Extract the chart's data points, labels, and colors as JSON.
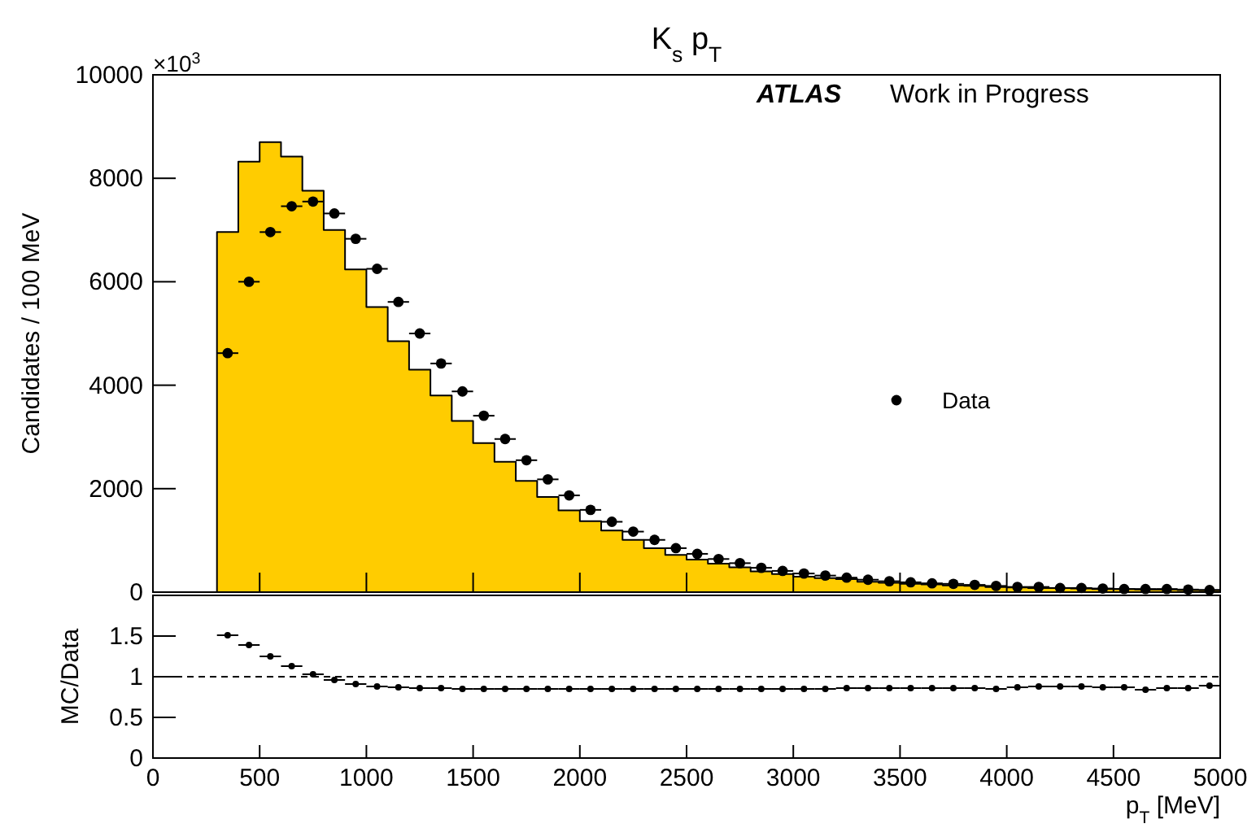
{
  "chart_data": [
    {
      "type": "histogram",
      "title": "K$_{s}$ p$_{T}$",
      "ylabel": "Candidates / 100 MeV",
      "annotations": [
        "×10$^{3}$",
        "ATLAS",
        "Work in Progress"
      ],
      "bins": [
        300,
        400,
        500,
        600,
        700,
        800,
        900,
        1000,
        1100,
        1200,
        1300,
        1400,
        1500,
        1600,
        1700,
        1800,
        1900,
        2000,
        2100,
        2200,
        2300,
        2400,
        2500,
        2600,
        2700,
        2800,
        2900,
        3000,
        3100,
        3200,
        3300,
        3400,
        3500,
        3600,
        3700,
        3800,
        3900,
        4000,
        4100,
        4200,
        4300,
        4400,
        4500,
        4600,
        4700,
        4800,
        4900,
        5000
      ],
      "series": [
        {
          "color": "#ffcc00",
          "values": [
            6960,
            8320,
            8700,
            8420,
            7760,
            7000,
            6240,
            5510,
            4850,
            4300,
            3800,
            3310,
            2880,
            2520,
            2150,
            1840,
            1580,
            1370,
            1190,
            1010,
            850,
            720,
            630,
            550,
            480,
            400,
            350,
            300,
            270,
            250,
            200,
            180,
            160,
            150,
            130,
            120,
            100,
            90,
            80,
            80,
            70,
            60,
            60,
            50,
            50,
            40,
            40
          ]
        },
        {
          "type": "scatter",
          "name": "Data",
          "color": "#000000",
          "x": [
            350,
            450,
            550,
            650,
            750,
            850,
            950,
            1050,
            1150,
            1250,
            1350,
            1450,
            1550,
            1650,
            1750,
            1850,
            1950,
            2050,
            2150,
            2250,
            2350,
            2450,
            2550,
            2650,
            2750,
            2850,
            2950,
            3050,
            3150,
            3250,
            3350,
            3450,
            3550,
            3650,
            3750,
            3850,
            3950,
            4050,
            4150,
            4250,
            4350,
            4450,
            4550,
            4650,
            4750,
            4850,
            4950
          ],
          "values": [
            4620,
            6000,
            6960,
            7460,
            7550,
            7320,
            6830,
            6250,
            5610,
            5000,
            4420,
            3880,
            3410,
            2960,
            2550,
            2180,
            1870,
            1590,
            1360,
            1170,
            1010,
            850,
            740,
            640,
            560,
            470,
            410,
            360,
            320,
            280,
            240,
            210,
            190,
            170,
            160,
            140,
            120,
            100,
            100,
            80,
            80,
            70,
            60,
            60,
            60,
            50,
            40
          ],
          "xerrors": [
            50,
            50,
            50,
            50,
            50,
            50,
            50,
            50,
            50,
            50,
            50,
            50,
            50,
            50,
            50,
            50,
            50,
            50,
            50,
            50,
            50,
            50,
            50,
            50,
            50,
            50,
            50,
            50,
            50,
            50,
            50,
            50,
            50,
            50,
            50,
            50,
            50,
            50,
            50,
            50,
            50,
            50,
            50,
            50,
            50,
            50,
            50
          ]
        }
      ],
      "xlim": [
        0,
        5000
      ],
      "xticks": [
        0,
        500,
        1000,
        1500,
        2000,
        2500,
        3000,
        3500,
        4000,
        4500,
        5000
      ],
      "ylim": [
        0,
        10000
      ],
      "yticks": [
        0,
        2000,
        4000,
        6000,
        8000,
        10000
      ],
      "tick_labels": "y",
      "legend": "right",
      "marker": "circle",
      "grid": false
    },
    {
      "type": "scatter",
      "xlabel": "p$_{T}$ [MeV]",
      "ylabel": "MC/Data",
      "series": [
        {
          "color": "#000000",
          "x": [
            350,
            450,
            550,
            650,
            750,
            850,
            950,
            1050,
            1150,
            1250,
            1350,
            1450,
            1550,
            1650,
            1750,
            1850,
            1950,
            2050,
            2150,
            2250,
            2350,
            2450,
            2550,
            2650,
            2750,
            2850,
            2950,
            3050,
            3150,
            3250,
            3350,
            3450,
            3550,
            3650,
            3750,
            3850,
            3950,
            4050,
            4150,
            4250,
            4350,
            4450,
            4550,
            4650,
            4750,
            4850,
            4950
          ],
          "values": [
            1.51,
            1.39,
            1.25,
            1.13,
            1.03,
            0.96,
            0.91,
            0.88,
            0.87,
            0.86,
            0.86,
            0.85,
            0.85,
            0.85,
            0.85,
            0.85,
            0.85,
            0.85,
            0.85,
            0.85,
            0.85,
            0.85,
            0.85,
            0.85,
            0.85,
            0.85,
            0.85,
            0.85,
            0.85,
            0.86,
            0.86,
            0.86,
            0.86,
            0.86,
            0.86,
            0.86,
            0.85,
            0.87,
            0.88,
            0.88,
            0.88,
            0.87,
            0.87,
            0.84,
            0.86,
            0.86,
            0.89
          ],
          "xerrors": [
            50,
            50,
            50,
            50,
            50,
            50,
            50,
            50,
            50,
            50,
            50,
            50,
            50,
            50,
            50,
            50,
            50,
            50,
            50,
            50,
            50,
            50,
            50,
            50,
            50,
            50,
            50,
            50,
            50,
            50,
            50,
            50,
            50,
            50,
            50,
            50,
            50,
            50,
            50,
            50,
            50,
            50,
            50,
            50,
            50,
            50,
            50
          ]
        }
      ],
      "ref_lines": [
        {
          "axis": "y",
          "value": 1,
          "line_style": "dashed",
          "color": "#000000"
        }
      ],
      "xlim": [
        0,
        5000
      ],
      "xticks": [
        0,
        500,
        1000,
        1500,
        2000,
        2500,
        3000,
        3500,
        4000,
        4500,
        5000
      ],
      "ylim": [
        0,
        2
      ],
      "yticks": [
        0,
        0.5,
        1,
        1.5
      ],
      "marker": "circle",
      "grid": false
    }
  ]
}
